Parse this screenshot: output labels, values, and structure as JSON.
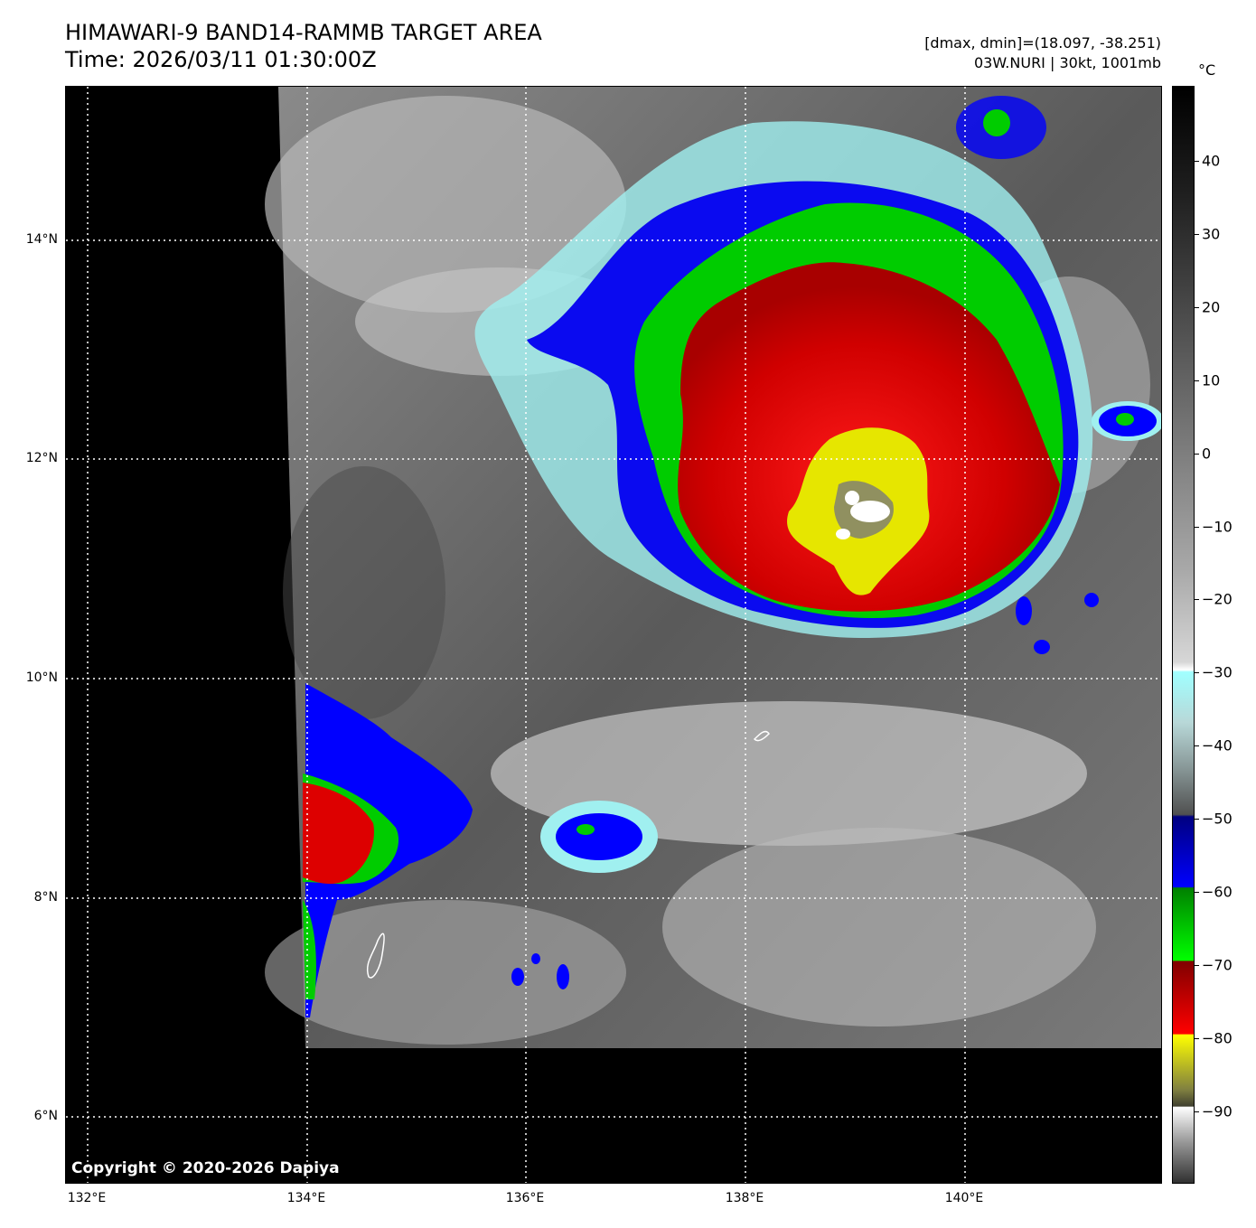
{
  "title": {
    "line1": "HIMAWARI-9 BAND14-RAMMB TARGET AREA",
    "line2": "Time: 2026/03/11 01:30:00Z"
  },
  "info": {
    "line1": "[dmax, dmin]=(18.097, -38.251)",
    "line2": "03W.NURI | 30kt, 1001mb"
  },
  "colorbar": {
    "unit": "°C",
    "labels": [
      "40",
      "30",
      "20",
      "10",
      "0",
      "−10",
      "−20",
      "−30",
      "−40",
      "−50",
      "−60",
      "−70",
      "−80",
      "−90"
    ]
  },
  "axes": {
    "lat_labels": [
      "14°N",
      "12°N",
      "10°N",
      "8°N",
      "6°N"
    ],
    "lon_labels": [
      "132°E",
      "134°E",
      "136°E",
      "138°E",
      "140°E"
    ]
  },
  "copyright": "Copyright © 2020-2026 Dapiya",
  "colors": {
    "background": "#000000",
    "blue_band": "#0000ff",
    "green_band": "#00cc00",
    "red_band": "#dd0000",
    "yellow_band": "#e6e600"
  }
}
